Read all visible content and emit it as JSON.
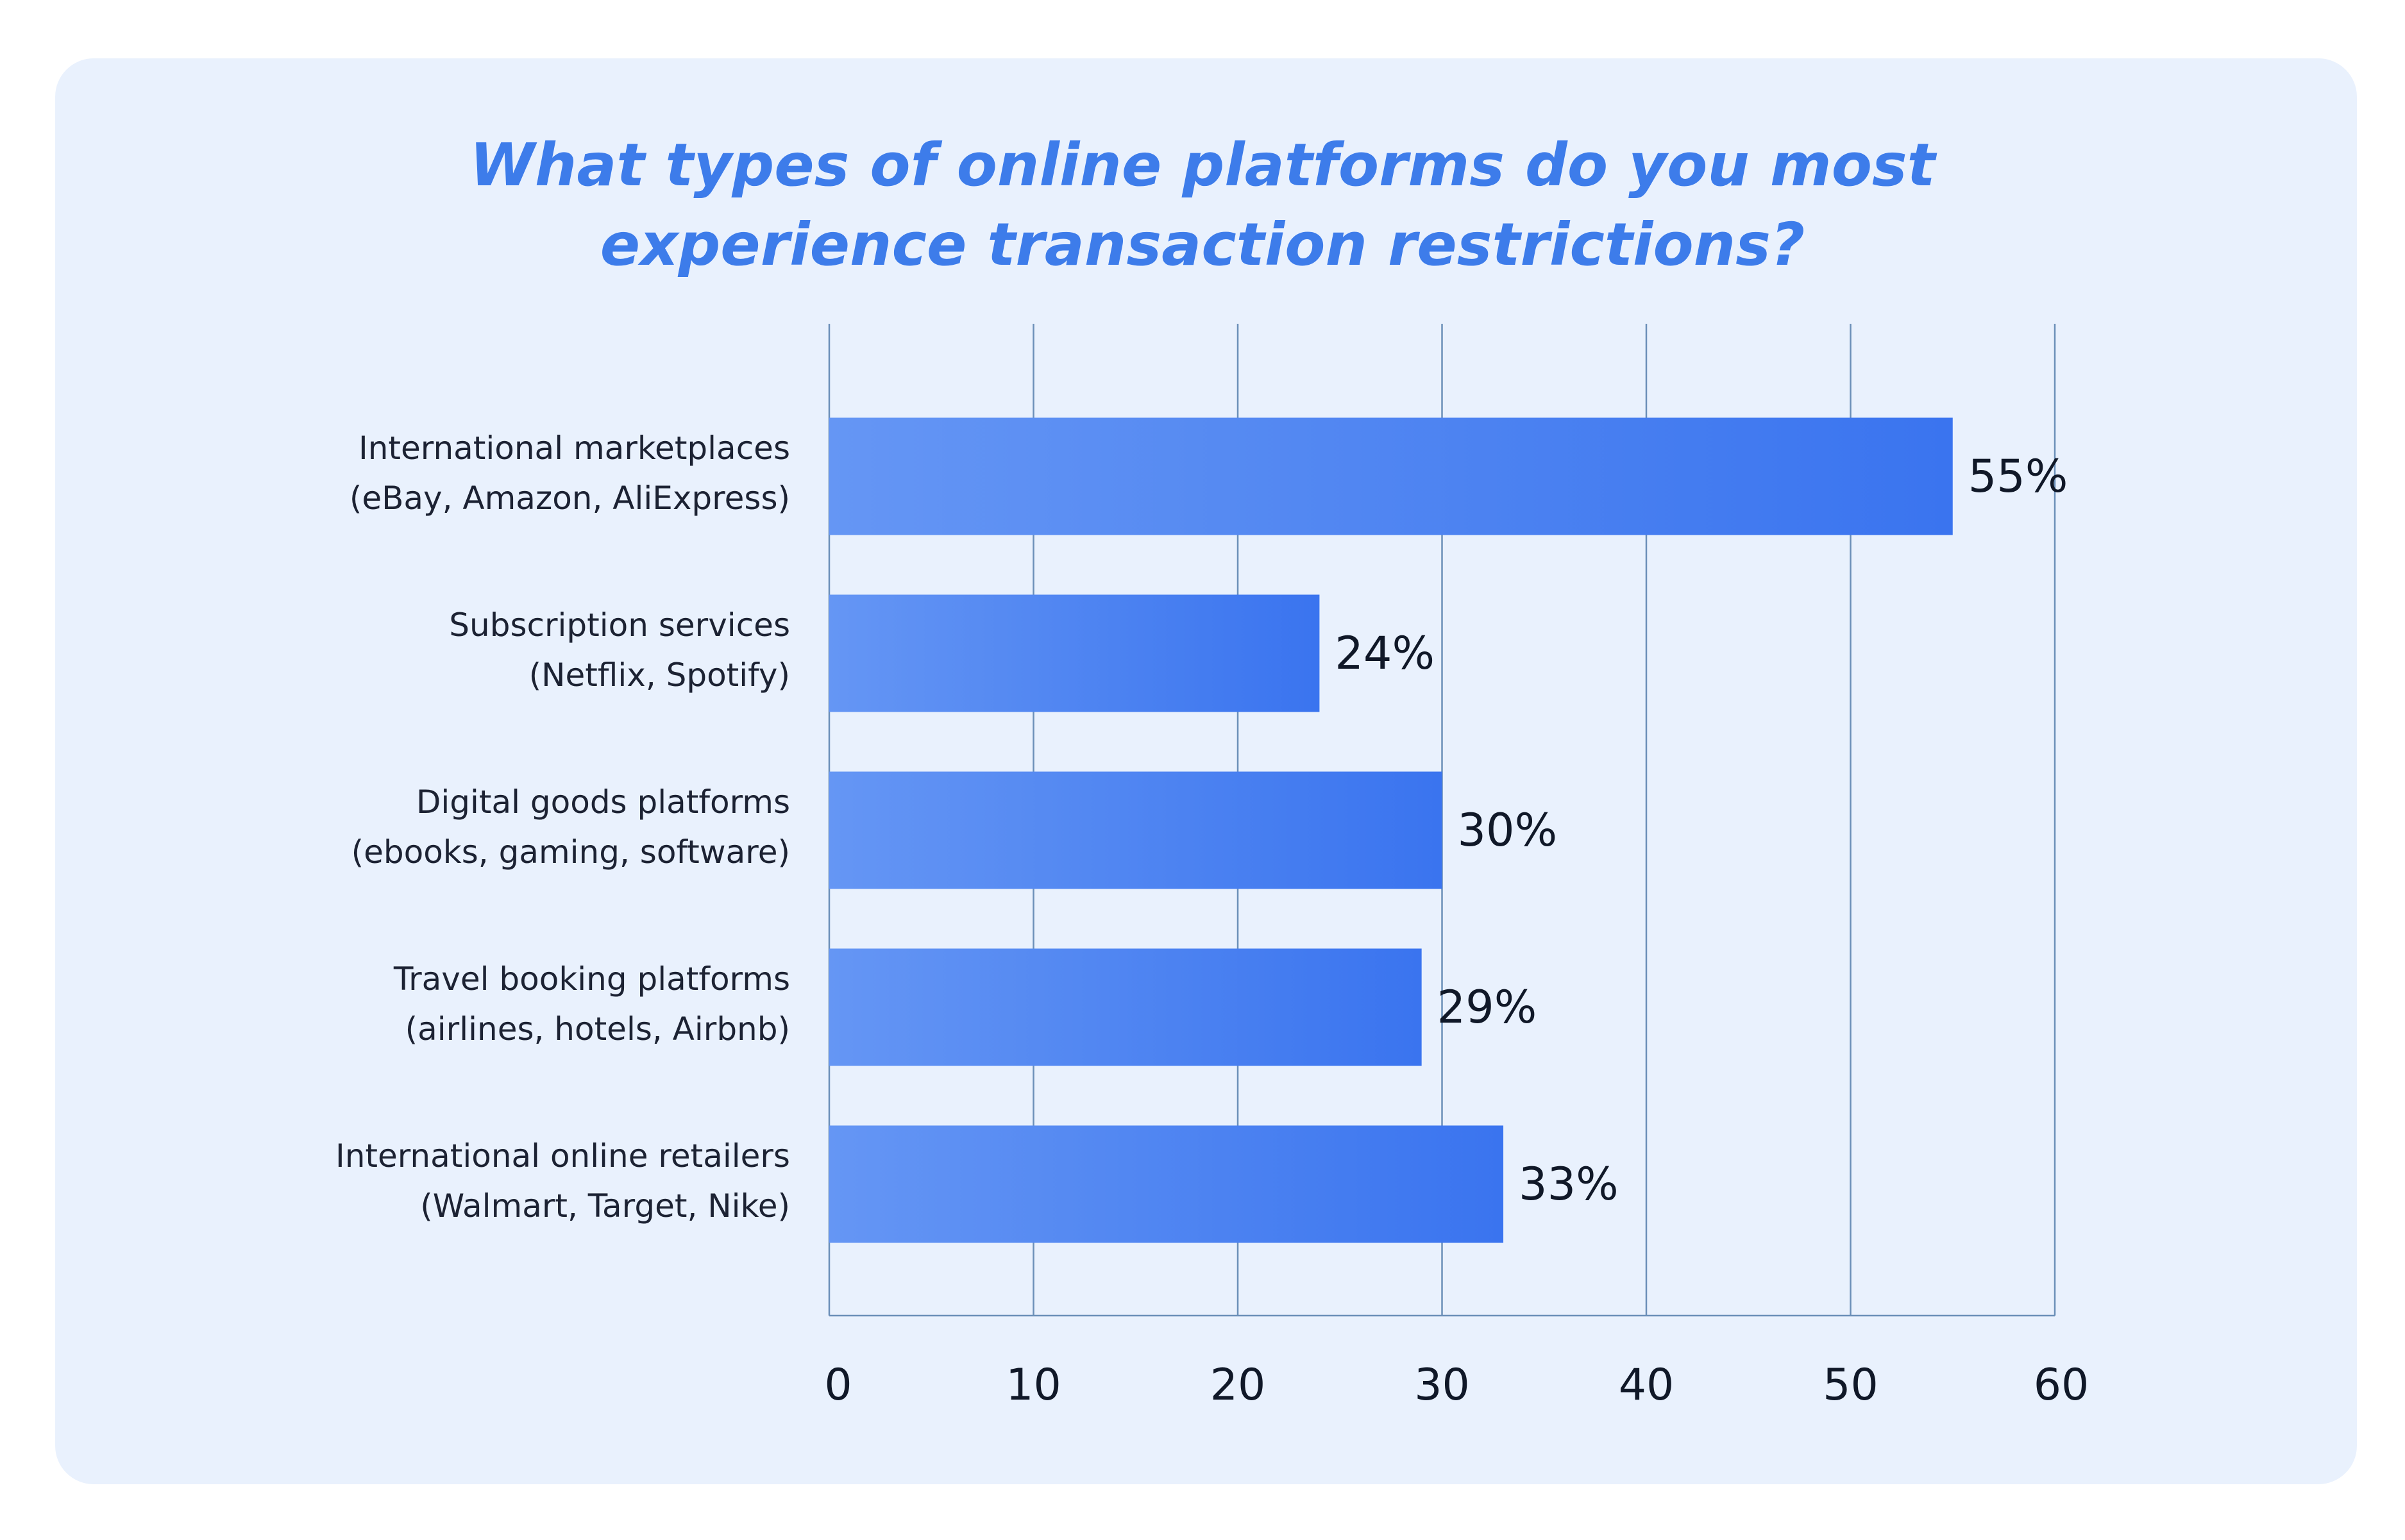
{
  "title_lines": [
    "What types of online platforms do you most",
    "experience transaction restrictions?"
  ],
  "colors": {
    "background_card": "#e9f1fd",
    "title": "#3d7cea",
    "bar_start": "#6596f4",
    "bar_end": "#3a74ef",
    "grid": "#6b8fb8",
    "text": "#101828"
  },
  "chart_data": {
    "type": "bar",
    "orientation": "horizontal",
    "title": "What types of online platforms do you most experience transaction restrictions?",
    "categories": [
      [
        "International marketplaces",
        "(eBay, Amazon, AliExpress)"
      ],
      [
        "Subscription services",
        "(Netflix, Spotify)"
      ],
      [
        "Digital goods platforms",
        "(ebooks, gaming, software)"
      ],
      [
        "Travel booking platforms",
        "(airlines, hotels, Airbnb)"
      ],
      [
        "International online retailers",
        "(Walmart, Target, Nike)"
      ]
    ],
    "values": [
      55,
      24,
      30,
      29,
      33
    ],
    "value_labels": [
      "55%",
      "24%",
      "30%",
      "29%",
      "33%"
    ],
    "xlim": [
      0,
      60
    ],
    "xticks": [
      0,
      10,
      20,
      30,
      40,
      50,
      60
    ],
    "grid": "vertical",
    "legend": "none"
  }
}
